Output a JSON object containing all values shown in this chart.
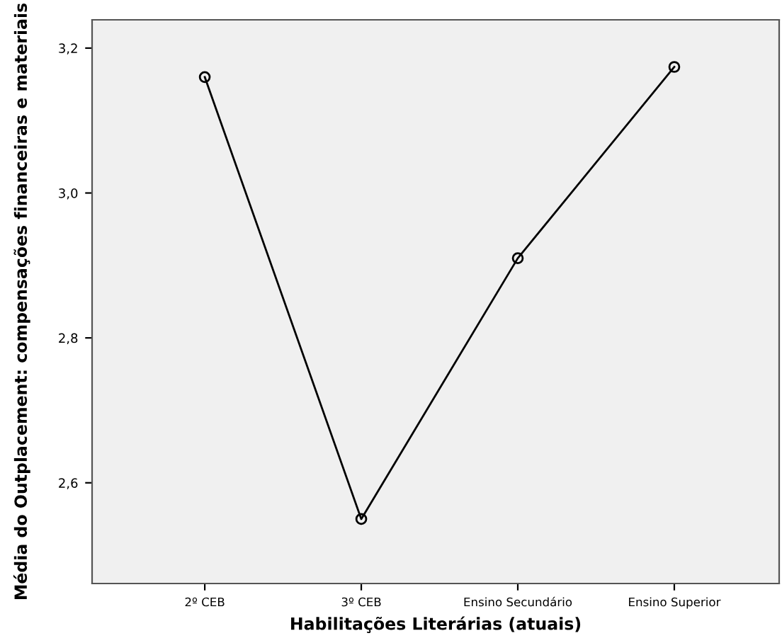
{
  "chart_data": {
    "type": "line",
    "xlabel": "Habilitações Literárias (atuais)",
    "ylabel": "Média do Outplacement: compensações financeiras e materiais",
    "categories": [
      "2º CEB",
      "3º CEB",
      "Ensino Secundário",
      "Ensino Superior"
    ],
    "series": [
      {
        "color": "#000000",
        "values": [
          3.16,
          2.55,
          2.91,
          3.174
        ]
      }
    ],
    "ylim": [
      2.461,
      3.239
    ],
    "yticks": [
      {
        "value": 2.6,
        "label": "2,6"
      },
      {
        "value": 2.8,
        "label": "2,8"
      },
      {
        "value": 3.0,
        "label": "3,0"
      },
      {
        "value": 3.2,
        "label": "3,2"
      }
    ],
    "grid": false,
    "legend": false,
    "marker": "circle",
    "line_style": "solid"
  }
}
